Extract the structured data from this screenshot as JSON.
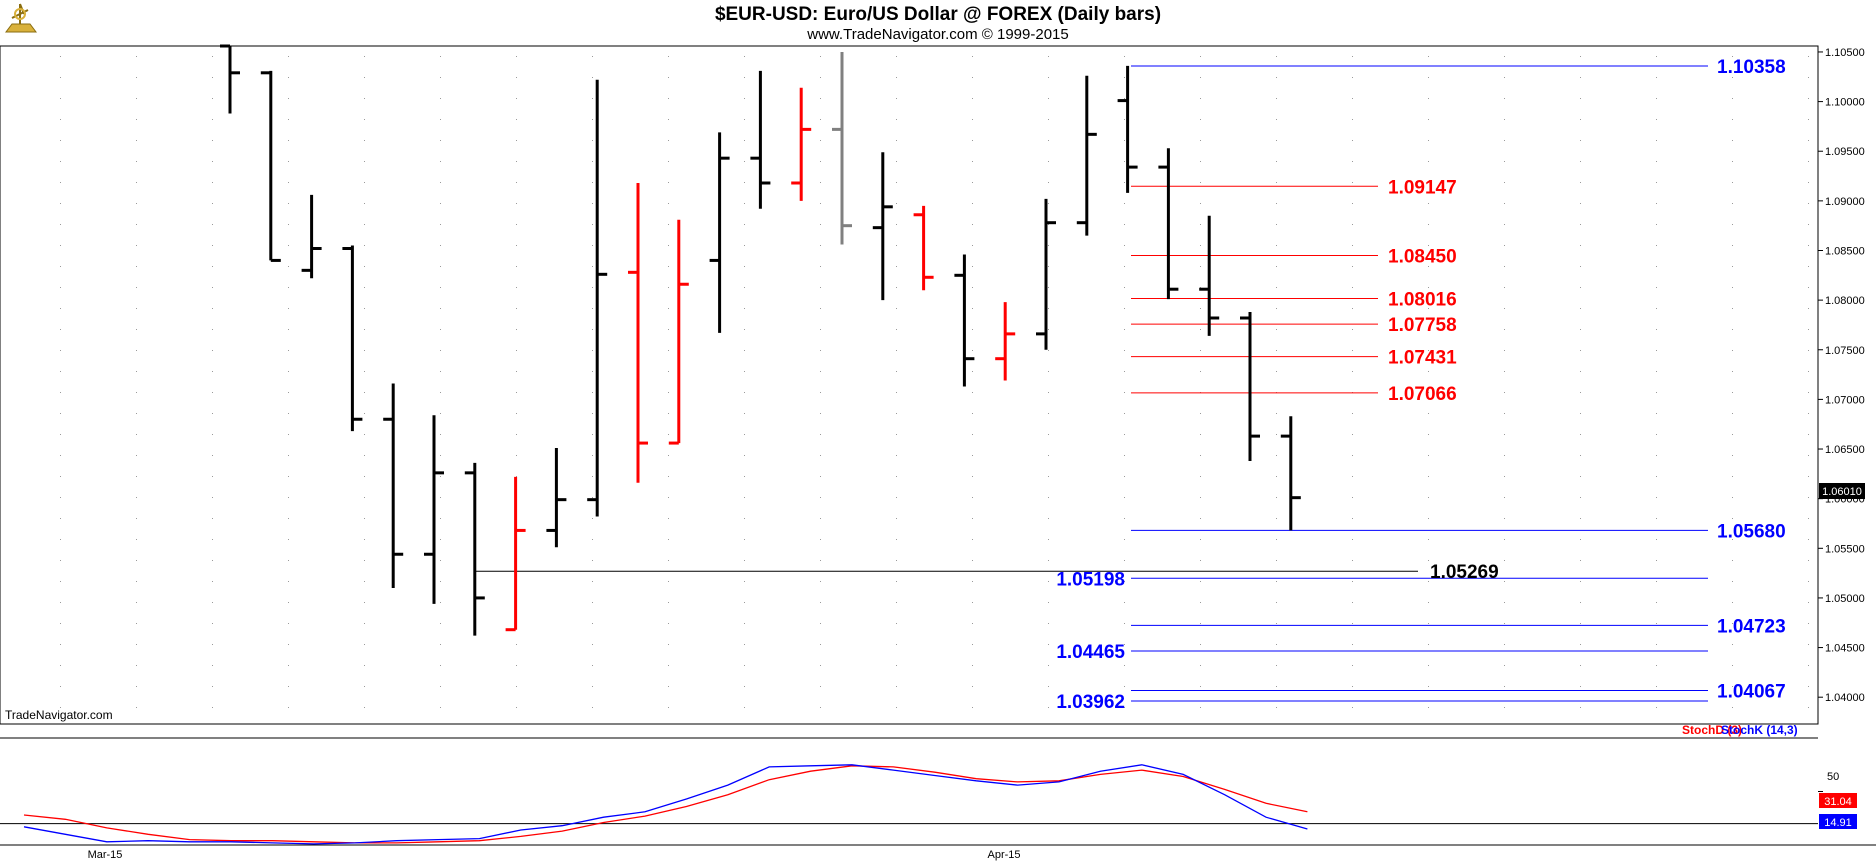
{
  "chart_data": {
    "type": "ohlc",
    "title": "$EUR-USD:  Euro/US Dollar @ FOREX  (Daily bars)",
    "subtitle": "www.TradeNavigator.com © 1999-2015",
    "watermark": "TradeNavigator.com",
    "price_axis": {
      "ticks": [
        "1.10500",
        "1.10000",
        "1.09500",
        "1.09000",
        "1.08500",
        "1.08000",
        "1.07500",
        "1.07000",
        "1.06500",
        "1.06000",
        "1.05500",
        "1.05000",
        "1.04500",
        "1.04000"
      ],
      "ylim": [
        1.0373,
        1.1056
      ],
      "last_price_tag": "1.06010"
    },
    "date_axis": {
      "labels": [
        "Mar-15",
        "Apr-15"
      ]
    },
    "colors": {
      "up_bar": "#000000",
      "down_bar": "#ff0000",
      "neutral_bar": "#808080",
      "blue_level": "#0000ff",
      "red_level": "#ff0000",
      "stoch_k": "#0000ff",
      "stoch_d": "#ff0000"
    },
    "bars": [
      {
        "x": 0,
        "o": 1.1056,
        "h": 1.1056,
        "l": 1.0988,
        "c": 1.1029,
        "color": "black"
      },
      {
        "x": 1,
        "o": 1.1029,
        "h": 1.1031,
        "l": 1.084,
        "c": 1.084,
        "color": "black"
      },
      {
        "x": 2,
        "o": 1.083,
        "h": 1.0906,
        "l": 1.0822,
        "c": 1.0852,
        "color": "black"
      },
      {
        "x": 3,
        "o": 1.0852,
        "h": 1.0855,
        "l": 1.0668,
        "c": 1.068,
        "color": "black"
      },
      {
        "x": 4,
        "o": 1.068,
        "h": 1.0716,
        "l": 1.051,
        "c": 1.0544,
        "color": "black"
      },
      {
        "x": 5,
        "o": 1.0544,
        "h": 1.0684,
        "l": 1.0494,
        "c": 1.0626,
        "color": "black"
      },
      {
        "x": 6,
        "o": 1.0626,
        "h": 1.0636,
        "l": 1.0462,
        "c": 1.05,
        "color": "black"
      },
      {
        "x": 7,
        "o": 1.0468,
        "h": 1.0622,
        "l": 1.0468,
        "c": 1.0568,
        "color": "red"
      },
      {
        "x": 8,
        "o": 1.0568,
        "h": 1.0651,
        "l": 1.0551,
        "c": 1.0599,
        "color": "black"
      },
      {
        "x": 9,
        "o": 1.0599,
        "h": 1.1022,
        "l": 1.0582,
        "c": 1.0826,
        "color": "black"
      },
      {
        "x": 10,
        "o": 1.0828,
        "h": 1.0918,
        "l": 1.0616,
        "c": 1.0656,
        "color": "red"
      },
      {
        "x": 11,
        "o": 1.0656,
        "h": 1.0881,
        "l": 1.0656,
        "c": 1.0816,
        "color": "red"
      },
      {
        "x": 12,
        "o": 1.084,
        "h": 1.0969,
        "l": 1.0767,
        "c": 1.0943,
        "color": "black"
      },
      {
        "x": 13,
        "o": 1.0943,
        "h": 1.1031,
        "l": 1.0892,
        "c": 1.0918,
        "color": "black"
      },
      {
        "x": 14,
        "o": 1.0918,
        "h": 1.1014,
        "l": 1.09,
        "c": 1.0972,
        "color": "red"
      },
      {
        "x": 15,
        "o": 1.0972,
        "h": 1.105,
        "l": 1.0856,
        "c": 1.0875,
        "color": "gray"
      },
      {
        "x": 16,
        "o": 1.0873,
        "h": 1.0949,
        "l": 1.08,
        "c": 1.0894,
        "color": "black"
      },
      {
        "x": 17,
        "o": 1.0886,
        "h": 1.0895,
        "l": 1.081,
        "c": 1.0823,
        "color": "red"
      },
      {
        "x": 18,
        "o": 1.0825,
        "h": 1.0846,
        "l": 1.0713,
        "c": 1.0741,
        "color": "black"
      },
      {
        "x": 19,
        "o": 1.0741,
        "h": 1.0798,
        "l": 1.0719,
        "c": 1.0766,
        "color": "red"
      },
      {
        "x": 20,
        "o": 1.0766,
        "h": 1.0902,
        "l": 1.075,
        "c": 1.0878,
        "color": "black"
      },
      {
        "x": 21,
        "o": 1.0878,
        "h": 1.1026,
        "l": 1.0865,
        "c": 1.0967,
        "color": "black"
      },
      {
        "x": 22,
        "o": 1.1001,
        "h": 1.1036,
        "l": 1.0908,
        "c": 1.0934,
        "color": "black"
      },
      {
        "x": 23,
        "o": 1.0934,
        "h": 1.0953,
        "l": 1.0801,
        "c": 1.0811,
        "color": "black"
      },
      {
        "x": 24,
        "o": 1.0811,
        "h": 1.0885,
        "l": 1.0764,
        "c": 1.0782,
        "color": "black"
      },
      {
        "x": 25,
        "o": 1.0782,
        "h": 1.0788,
        "l": 1.0638,
        "c": 1.0663,
        "color": "black"
      },
      {
        "x": 26,
        "o": 1.0663,
        "h": 1.0683,
        "l": 1.0568,
        "c": 1.0601,
        "color": "black"
      }
    ],
    "levels_blue_right": [
      "1.10358",
      "1.05680",
      "1.04723",
      "1.04067"
    ],
    "levels_blue_left": [
      "1.05198",
      "1.04465",
      "1.03962"
    ],
    "levels_red": [
      "1.09147",
      "1.08450",
      "1.08016",
      "1.07758",
      "1.07431",
      "1.07066"
    ],
    "level_black": "1.05269",
    "stochastic": {
      "legend_d": "StochD (3)",
      "legend_k": "StochK (14,3)",
      "axis_tick": "50",
      "ylim": [
        0,
        100
      ],
      "ref_line": 20,
      "d_tag": "31.04",
      "k_tag": "14.91",
      "k_values": [
        17,
        10,
        3,
        4,
        3,
        3,
        2,
        1,
        2,
        4,
        5,
        6,
        14,
        18,
        26,
        31,
        43,
        56,
        73,
        74,
        75,
        70,
        65,
        60,
        56,
        59,
        69,
        75,
        66,
        47,
        26,
        15
      ],
      "d_values": [
        28,
        24,
        16,
        10,
        5,
        4,
        4,
        3,
        2,
        2,
        3,
        4,
        8,
        13,
        21,
        27,
        36,
        47,
        61,
        69,
        74,
        73,
        68,
        62,
        59,
        60,
        66,
        70,
        64,
        52,
        39,
        31
      ]
    }
  }
}
